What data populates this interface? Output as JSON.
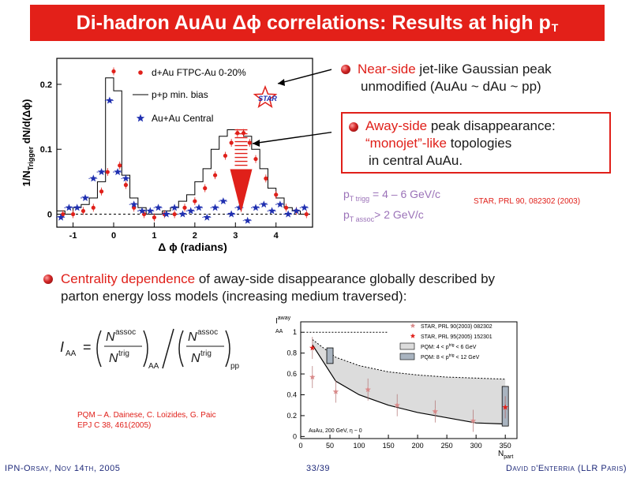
{
  "title": {
    "main": "Di-hadron AuAu Δϕ correlations: Results at high p",
    "sub": "T"
  },
  "bullets": {
    "near_side": {
      "highlight": "Near-side",
      "line1_rest": " jet-like Gaussian peak",
      "line2": "unmodified (AuAu ~ dAu ~ pp)"
    },
    "away_side": {
      "highlight": "Away-side",
      "line1_rest": " peak disappearance:",
      "line2_hl": "“monojet”-like",
      "line2_rest": " topologies",
      "line3": "in central AuAu."
    },
    "centrality": {
      "highlight": "Centrality dependence",
      "line1_rest": " of away-side disappearance globally described by",
      "line2": "parton energy loss models (increasing medium traversed):"
    }
  },
  "kinematics": {
    "line1_main": "p",
    "line1_sub": "T trigg",
    "line1_rest": " = 4 – 6 GeV/c",
    "line2_main": "p",
    "line2_sub": "T assoc",
    "line2_rest": "> 2 GeV/c"
  },
  "references": {
    "star_prl": "STAR, PRL 90, 082302 (2003)",
    "pqm_line1": "PQM – A. Dainese, C. Loizides, G. Paic",
    "pqm_line2": "EPJ C 38, 461(2005)"
  },
  "formula": {
    "lhs": "I",
    "lhs_sub": "AA",
    "num": "N",
    "num_sup": "assoc",
    "den": "N",
    "den_sup": "trig",
    "sub1": "AA",
    "sub2": "pp"
  },
  "footer": {
    "left": "IPN-Orsay, Nov 14th, 2005",
    "center": "33/39",
    "right": "David d'Enterria (LLR Paris)"
  },
  "colors": {
    "title_bg": "#e32019",
    "accent": "#e0201a",
    "kin": "#9b72b8",
    "band": "#dcdcdc",
    "footer": "#1f2a7a"
  },
  "chart_data": [
    {
      "type": "scatter",
      "xlabel": "Δ ϕ (radians)",
      "ylabel": "1/N",
      "ylabel_sub": "Trigger",
      "ylabel_rest": " dN/d(Δϕ)",
      "xlim": [
        -1.4,
        4.9
      ],
      "ylim": [
        -0.02,
        0.24
      ],
      "xticks": [
        -1,
        0,
        1,
        2,
        3,
        4
      ],
      "yticks": [
        0,
        0.1,
        0.2
      ],
      "ytick_labels": [
        "0",
        "0.1",
        "0.2"
      ],
      "series": [
        {
          "name": "d+Au FTPC-Au 0-20%",
          "marker": "circle",
          "color": "#e0201a",
          "x": [
            -1.25,
            -1.0,
            -0.75,
            -0.5,
            -0.3,
            -0.15,
            0,
            0.15,
            0.3,
            0.5,
            0.75,
            1.0,
            1.25,
            1.5,
            1.75,
            2.0,
            2.25,
            2.5,
            2.75,
            2.9,
            3.05,
            3.2,
            3.35,
            3.5,
            3.75,
            4.0,
            4.25,
            4.5,
            4.75
          ],
          "y": [
            0.0,
            0.0,
            0.005,
            0.01,
            0.035,
            0.065,
            0.22,
            0.075,
            0.045,
            0.01,
            0.0,
            -0.005,
            0.0,
            0.0,
            0.01,
            0.02,
            0.04,
            0.06,
            0.09,
            0.11,
            0.125,
            0.125,
            0.11,
            0.085,
            0.055,
            0.03,
            0.01,
            0.005,
            0.0
          ]
        },
        {
          "name": "p+p min. bias",
          "marker": "step",
          "color": "#000000",
          "x": [
            -1.3,
            -1.1,
            -0.9,
            -0.7,
            -0.5,
            -0.3,
            -0.1,
            0.1,
            0.3,
            0.5,
            0.7,
            0.9,
            1.1,
            1.3,
            1.5,
            1.7,
            1.9,
            2.1,
            2.3,
            2.5,
            2.7,
            2.9,
            3.1,
            3.3,
            3.5,
            3.7,
            3.9,
            4.1,
            4.3,
            4.5,
            4.7
          ],
          "y": [
            0.005,
            0.0,
            0.01,
            0.015,
            0.025,
            0.05,
            0.21,
            0.19,
            0.06,
            0.025,
            0.01,
            0.0,
            0.0,
            0.005,
            0.01,
            0.02,
            0.03,
            0.05,
            0.07,
            0.1,
            0.12,
            0.13,
            0.13,
            0.12,
            0.1,
            0.07,
            0.04,
            0.025,
            0.01,
            0.005,
            0.0
          ]
        },
        {
          "name": "Au+Au Central",
          "marker": "star",
          "color": "#1f2fb0",
          "x": [
            -1.3,
            -1.1,
            -0.9,
            -0.7,
            -0.5,
            -0.3,
            -0.1,
            0.1,
            0.3,
            0.5,
            0.7,
            0.9,
            1.1,
            1.3,
            1.5,
            1.7,
            1.9,
            2.1,
            2.3,
            2.5,
            2.7,
            2.9,
            3.1,
            3.3,
            3.5,
            3.7,
            3.9,
            4.1,
            4.3,
            4.5,
            4.7
          ],
          "y": [
            -0.005,
            0.01,
            0.01,
            0.025,
            0.055,
            0.065,
            0.175,
            0.065,
            0.055,
            0.015,
            0.005,
            0.005,
            0.01,
            0.0,
            0.01,
            0.0,
            0.005,
            0.01,
            -0.005,
            0.01,
            0.02,
            0.0,
            0.01,
            -0.01,
            0.01,
            0.015,
            0.005,
            0.015,
            0.0,
            0.005,
            0.01
          ]
        }
      ],
      "annotations": {
        "star_logo": "STAR"
      }
    },
    {
      "type": "scatter",
      "xlabel": "N",
      "xlabel_sub": "part",
      "ylabel": "I",
      "ylabel_sup": "away",
      "ylabel_sub": "AA",
      "xlim": [
        0,
        370
      ],
      "ylim": [
        -0.02,
        1.1
      ],
      "xticks": [
        0,
        50,
        100,
        150,
        200,
        250,
        300,
        350
      ],
      "yticks": [
        0,
        0.2,
        0.4,
        0.6,
        0.8,
        1
      ],
      "ytick_labels": [
        "0",
        "0.2",
        "0.4",
        "0.6",
        "0.8",
        "1"
      ],
      "series": [
        {
          "name": "STAR, PRL 90(2003) 082302",
          "marker": "star",
          "color": "#d98a8a",
          "x": [
            20,
            60,
            115,
            165,
            230,
            295,
            350
          ],
          "y": [
            0.57,
            0.43,
            0.45,
            0.3,
            0.24,
            0.15,
            0.28
          ]
        },
        {
          "name": "STAR, PRL 95(2005) 152301",
          "marker": "star",
          "color": "#e0201a",
          "x": [
            20,
            350
          ],
          "y": [
            0.85,
            0.28
          ]
        }
      ],
      "band_upper": {
        "x": [
          20,
          60,
          100,
          150,
          200,
          250,
          300,
          350
        ],
        "y": [
          0.93,
          0.76,
          0.68,
          0.62,
          0.59,
          0.57,
          0.56,
          0.55
        ]
      },
      "band_lower": {
        "x": [
          20,
          60,
          100,
          150,
          200,
          250,
          300,
          350
        ],
        "y": [
          0.88,
          0.53,
          0.4,
          0.3,
          0.23,
          0.18,
          0.13,
          0.12
        ]
      },
      "pqm_boxes": [
        {
          "x": 50,
          "y_low": 0.7,
          "y_high": 0.85
        },
        {
          "x": 350,
          "y_low": 0.1,
          "y_high": 0.48
        }
      ],
      "legend": [
        {
          "label": "PQM: 4 < p",
          "sup": "trig",
          "sub": "T",
          "rest": " < 6 GeV",
          "swatch": "#dcdcdc"
        },
        {
          "label": "PQM: 8 < p",
          "sup": "trig",
          "sub": "T",
          "rest": " < 12 GeV",
          "swatch": "#a9b4c0"
        }
      ],
      "note": "AuAu, 200 GeV, η ~ 0"
    }
  ]
}
